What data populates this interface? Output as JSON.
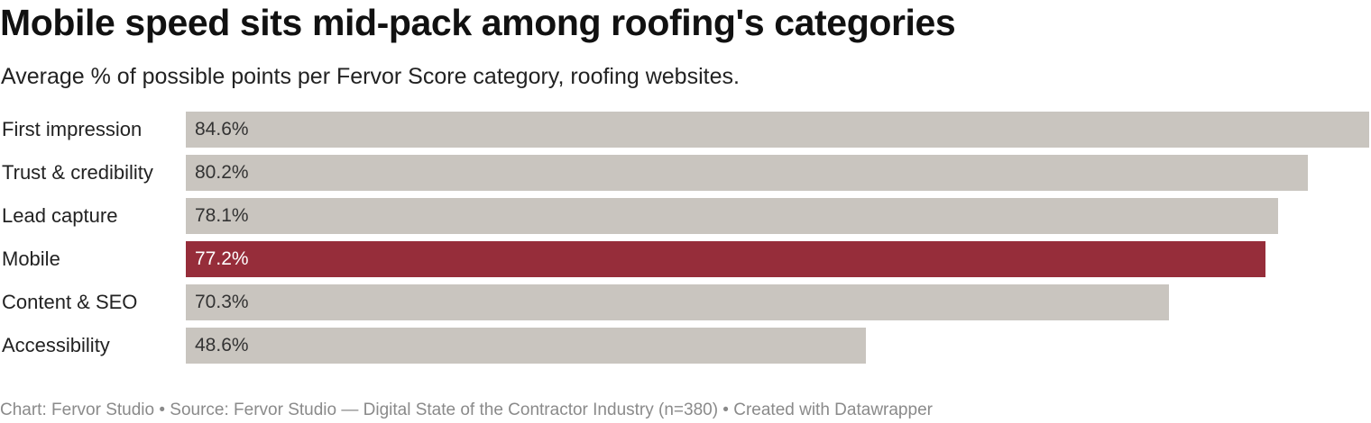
{
  "title": "Mobile speed sits mid-pack among roofing's categories",
  "subtitle": "Average % of possible points per Fervor Score category, roofing websites.",
  "footer": "Chart: Fervor Studio • Source: Fervor Studio — Digital State of the Contractor Industry (n=380) • Created with Datawrapper",
  "colors": {
    "default_bar": "#c9c5bf",
    "highlight_bar": "#962d3a",
    "default_value_text": "#333333",
    "highlight_value_text": "#ffffff"
  },
  "chart_data": {
    "type": "bar",
    "orientation": "horizontal",
    "title": "Mobile speed sits mid-pack among roofing's categories",
    "subtitle": "Average % of possible points per Fervor Score category, roofing websites.",
    "xlabel": "",
    "ylabel": "",
    "xlim": [
      0,
      84.6
    ],
    "grid": false,
    "legend": "none",
    "value_suffix": "%",
    "highlight": "Mobile",
    "categories": [
      "First impression",
      "Trust & credibility",
      "Lead capture",
      "Mobile",
      "Content & SEO",
      "Accessibility"
    ],
    "values": [
      84.6,
      80.2,
      78.1,
      77.2,
      70.3,
      48.6
    ],
    "value_labels": [
      "84.6%",
      "80.2%",
      "78.1%",
      "77.2%",
      "70.3%",
      "48.6%"
    ]
  }
}
